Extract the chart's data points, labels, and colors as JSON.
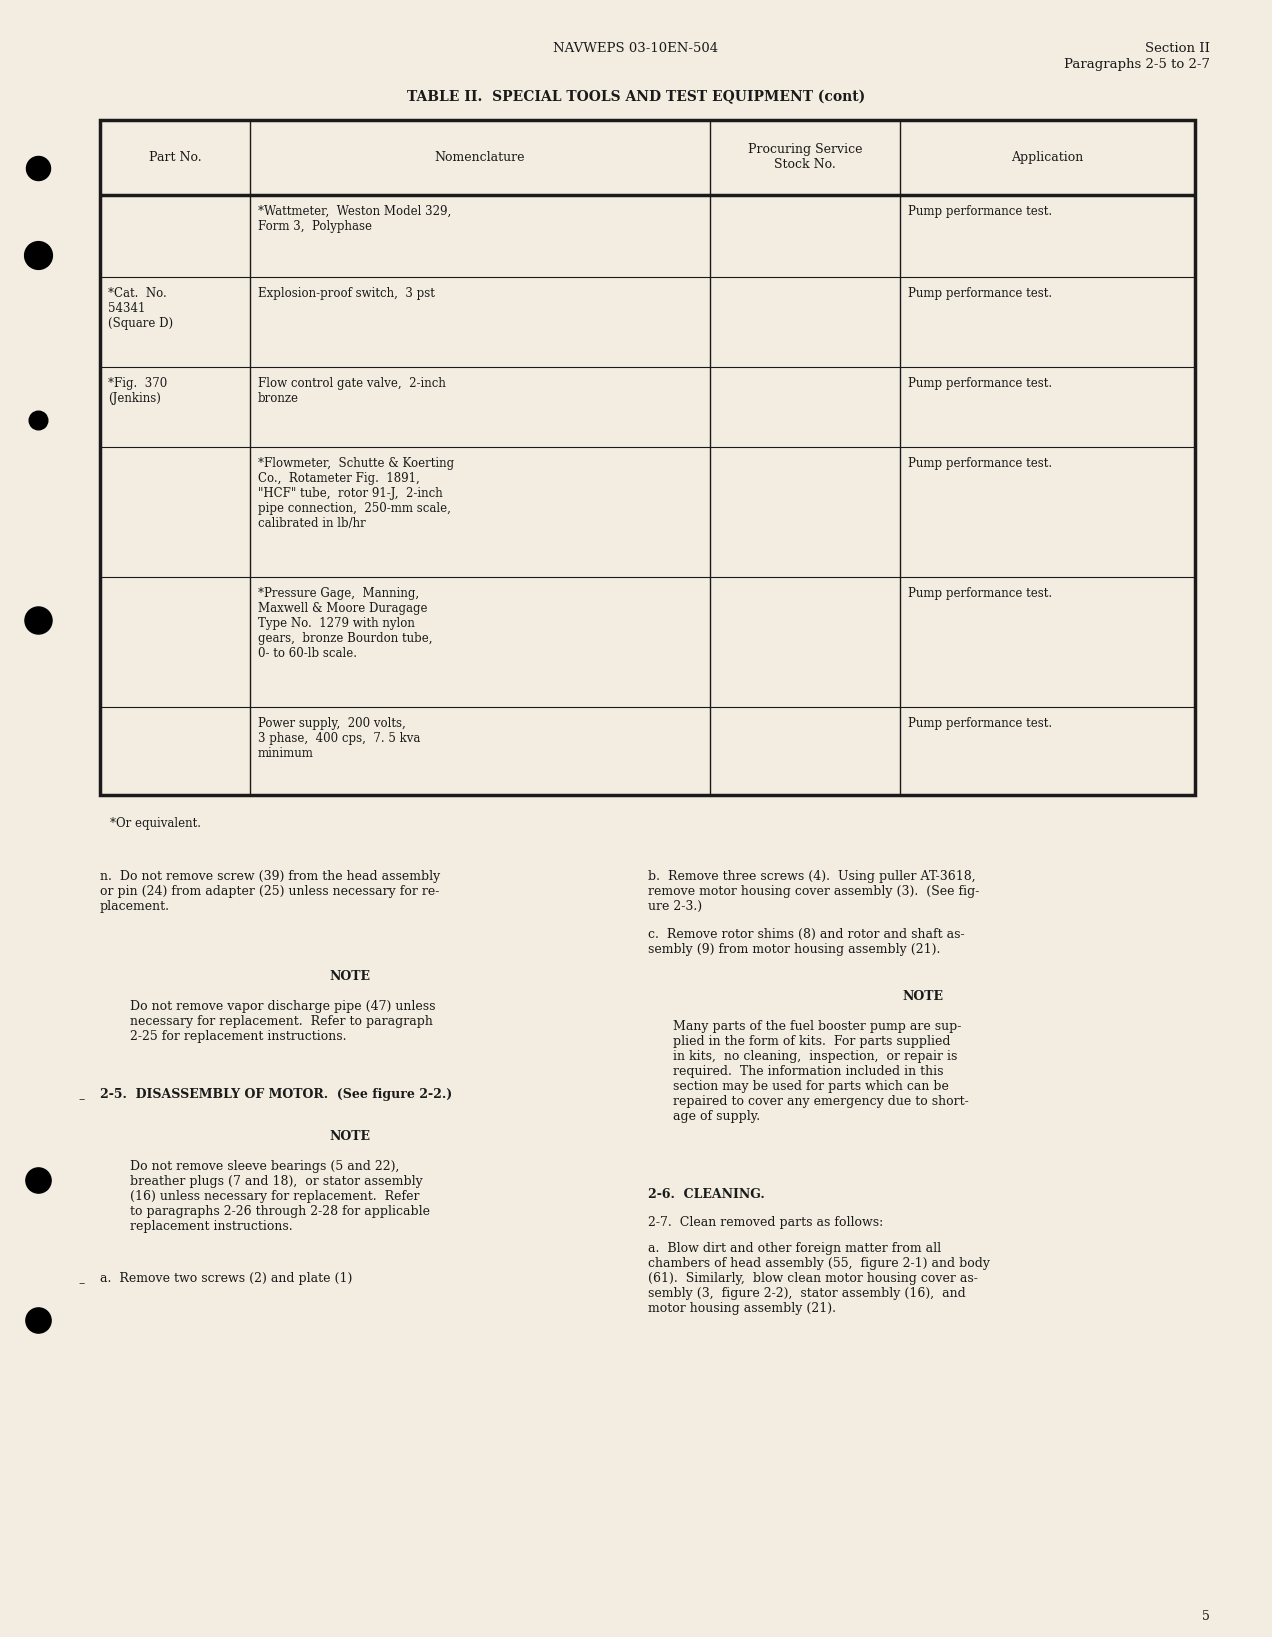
{
  "bg_color": "#f2ede0",
  "text_color": "#1a1a1a",
  "header_center": "NAVWEPS 03-10EN-504",
  "header_right_line1": "Section II",
  "header_right_line2": "Paragraphs 2-5 to 2-7",
  "table_title": "TABLE II.  SPECIAL TOOLS AND TEST EQUIPMENT (cont)",
  "table_headers": [
    "Part No.",
    "Nomenclature",
    "Procuring Service\nStock No.",
    "Application"
  ],
  "rows": [
    {
      "part_no": "",
      "nomenclature": "*Wattmeter,  Weston Model 329,\nForm 3,  Polyphase",
      "application": "Pump performance test."
    },
    {
      "part_no": "*Cat.  No.\n54341\n(Square D)",
      "nomenclature": "Explosion-proof switch,  3 pst",
      "application": "Pump performance test."
    },
    {
      "part_no": "*Fig.  370\n(Jenkins)",
      "nomenclature": "Flow control gate valve,  2-inch\nbronze",
      "application": "Pump performance test."
    },
    {
      "part_no": "",
      "nomenclature": "*Flowmeter,  Schutte & Koerting\nCo.,  Rotameter Fig.  1891,\n\"HCF\" tube,  rotor 91-J,  2-inch\npipe connection,  250-mm scale,\ncalibrated in lb/hr",
      "application": "Pump performance test."
    },
    {
      "part_no": "",
      "nomenclature": "*Pressure Gage,  Manning,\nMaxwell & Moore Duragage\nType No.  1279 with nylon\ngears,  bronze Bourdon tube,\n0- to 60-lb scale.",
      "application": "Pump performance test."
    },
    {
      "part_no": "",
      "nomenclature": "Power supply,  200 volts,\n3 phase,  400 cps,  7. 5 kva\nminimum",
      "application": "Pump performance test."
    }
  ],
  "footnote": "*Or equivalent.",
  "para_n": "n.  Do not remove screw (39) from the head assembly\nor pin (24) from adapter (25) unless necessary for re-\nplacement.",
  "left_note1_label": "NOTE",
  "left_note1_body": "Do not remove vapor discharge pipe (47) unless\nnecessary for replacement.  Refer to paragraph\n2-25 for replacement instructions.",
  "left_sec25": "2-5.  DISASSEMBLY OF MOTOR.  (See figure 2-2.)",
  "left_note2_label": "NOTE",
  "left_note2_body": "Do not remove sleeve bearings (5 and 22),\nbreather plugs (7 and 18),  or stator assembly\n(16) unless necessary for replacement.  Refer\nto paragraphs 2-26 through 2-28 for applicable\nreplacement instructions.",
  "left_para_a": "a.  Remove two screws (2) and plate (1)",
  "right_para_b": "b.  Remove three screws (4).  Using puller AT-3618,\nremove motor housing cover assembly (3).  (See fig-\nure 2-3.)",
  "right_para_c": "c.  Remove rotor shims (8) and rotor and shaft as-\nsembly (9) from motor housing assembly (21).",
  "right_note_label": "NOTE",
  "right_note_body": "Many parts of the fuel booster pump are sup-\nplied in the form of kits.  For parts supplied\nin kits,  no cleaning,  inspection,  or repair is\nrequired.  The information included in this\nsection may be used for parts which can be\nrepaired to cover any emergency due to short-\nage of supply.",
  "right_sec26": "2-6.  CLEANING.",
  "right_sec27": "2-7.  Clean removed parts as follows:",
  "right_para_a": "a.  Blow dirt and other foreign matter from all\nchambers of head assembly (55,  figure 2-1) and body\n(61).  Similarly,  blow clean motor housing cover as-\nsembly (3,  figure 2-2),  stator assembly (16),  and\nmotor housing assembly (21).",
  "page_number": "5"
}
